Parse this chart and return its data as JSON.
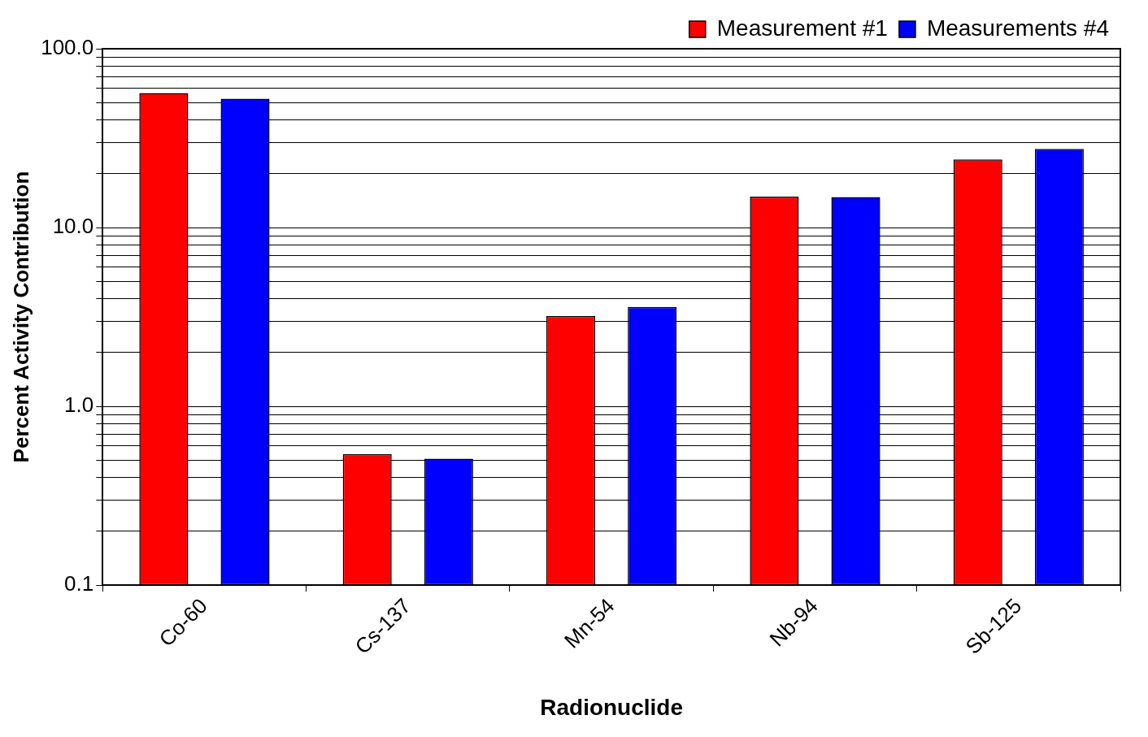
{
  "chart_data": {
    "type": "bar",
    "xlabel": "Radionuclide",
    "ylabel": "Percent Activity Contribution",
    "categories": [
      "Co-60",
      "Cs-137",
      "Mn-54",
      "Nb-94",
      "Sb-125"
    ],
    "series": [
      {
        "name": "Measurement #1",
        "color": "#ff0000",
        "values": [
          56.5,
          0.54,
          3.2,
          14.9,
          24
        ]
      },
      {
        "name": "Measurements #4",
        "color": "#0000ff",
        "values": [
          52.5,
          0.51,
          3.6,
          14.8,
          27.5
        ]
      }
    ],
    "log": "y",
    "ylim": [
      0.1,
      100
    ],
    "yticks": [
      {
        "value": 0.1,
        "label": "0.1"
      },
      {
        "value": 0.2,
        "label": null
      },
      {
        "value": 0.3,
        "label": null
      },
      {
        "value": 0.4,
        "label": null
      },
      {
        "value": 0.5,
        "label": null
      },
      {
        "value": 0.6,
        "label": null
      },
      {
        "value": 0.7,
        "label": null
      },
      {
        "value": 0.8,
        "label": null
      },
      {
        "value": 0.9,
        "label": null
      },
      {
        "value": 1,
        "label": "1.0"
      },
      {
        "value": 2,
        "label": null
      },
      {
        "value": 3,
        "label": null
      },
      {
        "value": 4,
        "label": null
      },
      {
        "value": 5,
        "label": null
      },
      {
        "value": 6,
        "label": null
      },
      {
        "value": 7,
        "label": null
      },
      {
        "value": 8,
        "label": null
      },
      {
        "value": 9,
        "label": null
      },
      {
        "value": 10,
        "label": "10.0"
      },
      {
        "value": 20,
        "label": null
      },
      {
        "value": 30,
        "label": null
      },
      {
        "value": 40,
        "label": null
      },
      {
        "value": 50,
        "label": null
      },
      {
        "value": 60,
        "label": null
      },
      {
        "value": 70,
        "label": null
      },
      {
        "value": 80,
        "label": null
      },
      {
        "value": 90,
        "label": null
      },
      {
        "value": 100,
        "label": "100.0"
      }
    ],
    "grid": "y",
    "legend": "top right"
  }
}
